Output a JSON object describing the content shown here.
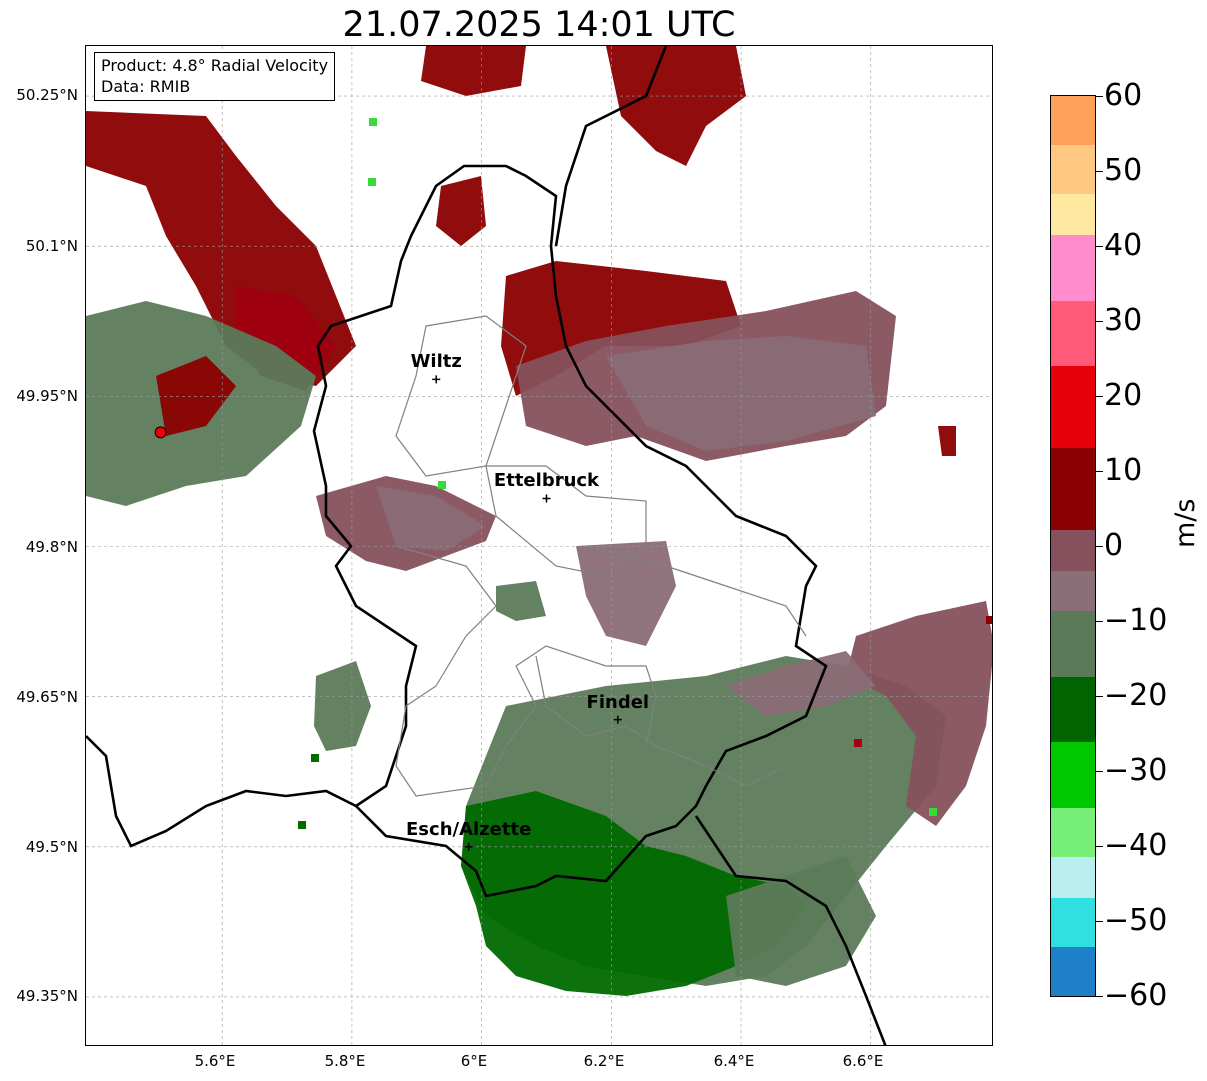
{
  "title": "21.07.2025 14:01 UTC",
  "info": {
    "product": "Product: 4.8° Radial Velocity",
    "source": "Data: RMIB"
  },
  "cities": [
    {
      "name": "Wiltz",
      "lon": 5.93,
      "lat": 49.967
    },
    {
      "name": "Ettelbruck",
      "lon": 6.1,
      "lat": 49.848
    },
    {
      "name": "Findel",
      "lon": 6.21,
      "lat": 49.627
    },
    {
      "name": "Esch/Alzette",
      "lon": 5.98,
      "lat": 49.5
    }
  ],
  "radar_site": {
    "lon": 5.505,
    "lat": 49.914
  },
  "axes": {
    "lat_labels": [
      "50.25°N",
      "50.1°N",
      "49.95°N",
      "49.8°N",
      "49.65°N",
      "49.5°N",
      "49.35°N"
    ],
    "lon_labels": [
      "5.6°E",
      "5.8°E",
      "6°E",
      "6.2°E",
      "6.4°E",
      "6.6°E"
    ],
    "lon_range": [
      5.39,
      6.79
    ],
    "lat_range": [
      49.3,
      50.3
    ]
  },
  "colorbar": {
    "label": "m/s",
    "ticks": [
      "60",
      "50",
      "40",
      "30",
      "20",
      "10",
      "0",
      "−10",
      "−20",
      "−30",
      "−40",
      "−50",
      "−60"
    ],
    "range": [
      -60,
      60
    ],
    "colors": {
      "orange": "#ffa05a",
      "light_orange": "#ffc880",
      "pale_yellow": "#ffe8a0",
      "pink": "#ff8ccc",
      "salmon": "#ff5a78",
      "red": "#e8000a",
      "dark_red": "#8b0000",
      "mauve": "#86515c",
      "grey_mauve": "#8c6e78",
      "grey_green": "#5a7a58",
      "dark_green": "#006400",
      "green": "#00c800",
      "light_green": "#78f078",
      "pale_cyan": "#b8eef0",
      "cyan": "#30e0e0",
      "blue": "#1e80c8"
    }
  },
  "echo_colors": {
    "strong_red": "#8b0000",
    "red": "#a00010",
    "mauve": "#86515c",
    "grey_mauve": "#8a6b75",
    "grey_green": "#5c7a59",
    "dark_green": "#006a00",
    "bright_green": "#33dd33"
  }
}
